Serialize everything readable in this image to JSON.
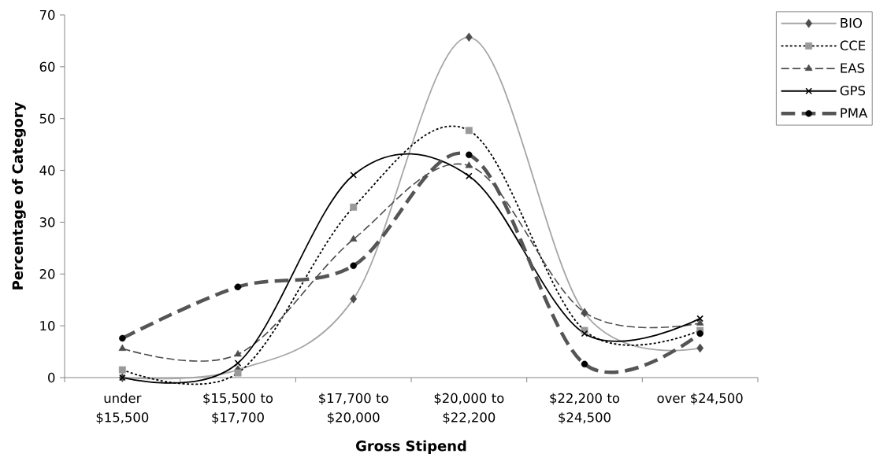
{
  "chart_data": {
    "type": "line",
    "xlabel": "Gross Stipend",
    "ylabel": "Percentage of Category",
    "categories": [
      "under $15,500",
      "$15,500 to $17,700",
      "$17,700 to $20,000",
      "$20,000 to $22,200",
      "$22,200 to $24,500",
      "over $24,500"
    ],
    "series": [
      {
        "name": "BIO",
        "color": "#a6a6a6",
        "marker": "diamond",
        "line_style": "solid",
        "values": [
          0,
          1.5,
          15.2,
          65.7,
          12.5,
          5.7
        ]
      },
      {
        "name": "CCE",
        "color": "#000000",
        "marker": "square",
        "line_style": "dotted",
        "values": [
          1.5,
          0.9,
          32.9,
          47.7,
          9.1,
          9.1
        ]
      },
      {
        "name": "EAS",
        "color": "#4d4d4d",
        "marker": "triangle",
        "line_style": "dashed",
        "values": [
          5.6,
          4.5,
          26.7,
          40.9,
          12.6,
          10.5
        ]
      },
      {
        "name": "GPS",
        "color": "#000000",
        "marker": "cross",
        "line_style": "solid",
        "values": [
          0,
          2.8,
          39.1,
          38.9,
          8.5,
          11.4
        ]
      },
      {
        "name": "PMA",
        "color": "#555555",
        "marker": "circle",
        "line_style": "dashed",
        "values": [
          7.6,
          17.5,
          21.6,
          43.0,
          2.6,
          8.5
        ]
      }
    ],
    "ylim": [
      0,
      70
    ],
    "yticks": [
      0,
      10,
      20,
      30,
      40,
      50,
      60,
      70
    ],
    "legend": "top right"
  }
}
